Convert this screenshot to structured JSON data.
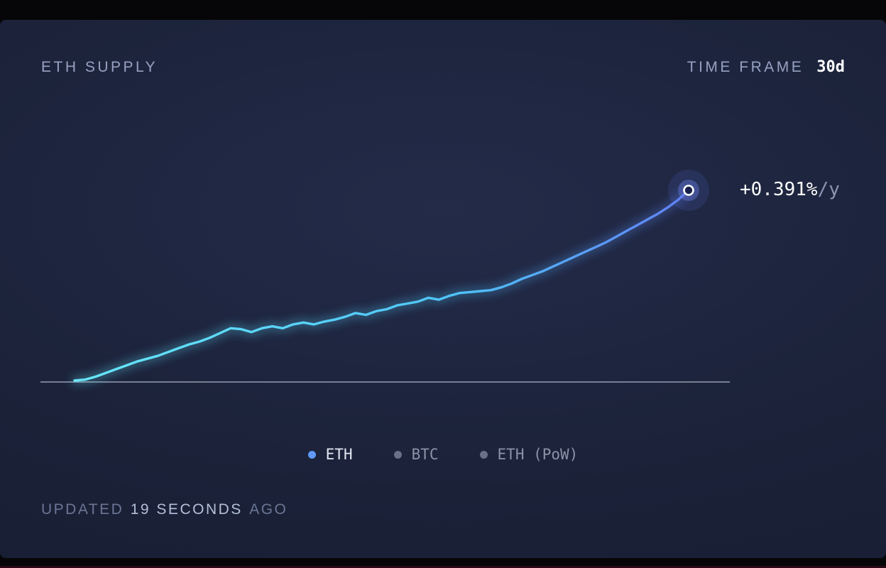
{
  "header": {
    "title": "ETH SUPPLY",
    "timeframe_label": "TIME FRAME",
    "timeframe_value": "30d"
  },
  "annotation": {
    "rate": "+0.391%",
    "unit": "/y"
  },
  "legend": [
    {
      "label": "ETH",
      "color": "#609af8",
      "active": true
    },
    {
      "label": "BTC",
      "color": "#687188",
      "active": false
    },
    {
      "label": "ETH (PoW)",
      "color": "#687188",
      "active": false
    }
  ],
  "footer": {
    "prefix": "UPDATED",
    "highlight": "19 SECONDS",
    "suffix": "AGO"
  },
  "colors": {
    "panel_bg": "#1b2239",
    "line_start": "#67e8f9",
    "line_end": "#6180f6",
    "baseline": "#aab3c8",
    "title_text": "#97a2c2",
    "marker_halo": "#5a78f0"
  },
  "chart_data": {
    "type": "line",
    "title": "ETH SUPPLY",
    "timeframe": "30d",
    "annotation": "+0.391%/y",
    "xlabel": "",
    "ylabel": "",
    "x_axis_note": "30-day time window, no tick labels shown",
    "y_axis_note": "supply change, normalized 0-100 (values estimated from pixels; no axis labels shown)",
    "baseline_note": "horizontal reference line at starting supply level",
    "legend_entries": [
      "ETH",
      "BTC",
      "ETH (PoW)"
    ],
    "legend_position": "bottom-center",
    "grid": false,
    "series": [
      {
        "name": "ETH",
        "values": [
          0,
          0.5,
          2,
          4,
          6,
          8,
          10,
          11.5,
          13,
          15,
          17,
          19,
          20.5,
          22.5,
          25,
          27.5,
          27,
          25.5,
          27.5,
          28.5,
          27.5,
          29.5,
          30.5,
          29.5,
          31,
          32,
          33.5,
          35.5,
          34.5,
          36.5,
          37.5,
          39.5,
          40.5,
          41.5,
          43.5,
          42.5,
          44.5,
          46,
          46.5,
          47,
          47.5,
          49,
          51,
          53.5,
          55.5,
          57.5,
          60,
          62.5,
          65,
          67.5,
          70,
          72.5,
          75.5,
          78.5,
          81.5,
          84.5,
          87.5,
          91,
          95,
          100
        ]
      }
    ]
  }
}
